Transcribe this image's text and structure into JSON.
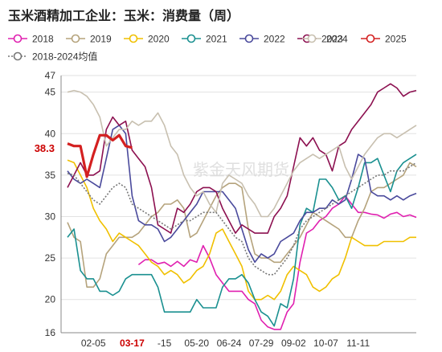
{
  "chart_data": {
    "type": "line",
    "title": "玉米酒精加工企业：玉米：消费量（周）",
    "watermark": "紫金天风期货",
    "ylim": [
      16,
      47
    ],
    "yticks": [
      16,
      20,
      25,
      30,
      35,
      40,
      45,
      47
    ],
    "xticks": [
      {
        "label": "02-05",
        "x": 5
      },
      {
        "label": "03-17",
        "x": 11,
        "highlight": true
      },
      {
        "label": "-15",
        "x": 16
      },
      {
        "label": "05-20",
        "x": 21
      },
      {
        "label": "06-24",
        "x": 26
      },
      {
        "label": "07-29",
        "x": 31
      },
      {
        "label": "09-02",
        "x": 36
      },
      {
        "label": "10-07",
        "x": 41
      },
      {
        "label": "11-11",
        "x": 46
      }
    ],
    "highlight_value": "38.3",
    "highlight_color": "#cc0000",
    "grid": "horizontal",
    "legend_position": "top",
    "series": [
      {
        "name": "2018",
        "color": "#e020b0",
        "marker": "circle",
        "dashed": false,
        "values": [
          null,
          null,
          null,
          null,
          null,
          null,
          null,
          null,
          null,
          null,
          null,
          null,
          24.2,
          24.8,
          24.8,
          24.3,
          24.5,
          24.0,
          24.6,
          24.0,
          24.8,
          24.5,
          26.5,
          25.0,
          23.0,
          22.0,
          21.0,
          21.0,
          21.0,
          20.0,
          19.5,
          17.5,
          16.7,
          16.4,
          16.4,
          18.5,
          19.5,
          24.5,
          28.0,
          28.5,
          29.5,
          30.0,
          31.0,
          31.5,
          32.5,
          31.5,
          30.5,
          30.5,
          30.3,
          30.2,
          29.8,
          30.3,
          30.5,
          30.0,
          30.2,
          29.9
        ]
      },
      {
        "name": "2019",
        "color": "#b5a37c",
        "marker": "circle",
        "dashed": false,
        "values": [
          null,
          29.3,
          27.5,
          27.0,
          21.5,
          21.5,
          22.5,
          25.5,
          26.5,
          27.5,
          27.5,
          27.5,
          28.0,
          29.0,
          30.0,
          30.5,
          31.5,
          31.5,
          32.0,
          31.0,
          27.5,
          28.0,
          29.5,
          31.0,
          32.5,
          33.5,
          34.0,
          34.0,
          33.5,
          28.5,
          25.5,
          25.0,
          25.0,
          24.5,
          24.5,
          25.5,
          26.5,
          27.5,
          29.0,
          30.5,
          30.0,
          29.5,
          29.0,
          28.5,
          27.5,
          27.5,
          29.5,
          31.0,
          33.0,
          33.5,
          33.5,
          34.0,
          34.5,
          35.0,
          36.5,
          36.0
        ]
      },
      {
        "name": "2020",
        "color": "#f0c000",
        "marker": "circle",
        "dashed": false,
        "values": [
          null,
          36.8,
          36.5,
          35.0,
          33.5,
          31.0,
          29.5,
          28.5,
          27.0,
          28.0,
          27.5,
          27.0,
          26.5,
          25.5,
          24.5,
          24.0,
          23.0,
          23.5,
          23.0,
          22.0,
          22.5,
          23.5,
          24.0,
          25.5,
          28.0,
          28.5,
          27.0,
          25.5,
          24.0,
          21.0,
          20.0,
          20.0,
          20.5,
          20.0,
          21.0,
          23.0,
          24.0,
          23.5,
          23.0,
          21.5,
          21.0,
          21.5,
          22.5,
          23.0,
          25.0,
          27.5,
          27.0,
          26.5,
          26.5,
          26.5,
          27.0,
          27.0,
          27.0,
          27.0,
          27.5,
          27.5
        ]
      },
      {
        "name": "2021",
        "color": "#1a9090",
        "marker": "circle",
        "dashed": false,
        "values": [
          null,
          27.5,
          28.5,
          23.5,
          22.5,
          22.5,
          21.0,
          21.0,
          20.5,
          21.0,
          22.5,
          23.0,
          23.0,
          23.0,
          23.0,
          21.5,
          18.5,
          18.5,
          18.5,
          18.5,
          18.5,
          20.0,
          19.0,
          19.0,
          19.0,
          21.5,
          22.5,
          22.5,
          23.0,
          22.0,
          20.0,
          18.5,
          18.0,
          16.8,
          19.5,
          19.0,
          22.5,
          29.0,
          31.0,
          30.5,
          34.5,
          34.5,
          33.5,
          32.0,
          32.5,
          31.0,
          33.5,
          36.5,
          36.5,
          37.0,
          35.0,
          33.0,
          35.5,
          36.5,
          37.0,
          37.5
        ]
      },
      {
        "name": "2022",
        "color": "#4a4a9c",
        "marker": "circle",
        "dashed": false,
        "values": [
          null,
          35.5,
          34.5,
          34.0,
          34.5,
          34.0,
          33.5,
          37.0,
          40.5,
          41.0,
          40.0,
          32.5,
          29.5,
          29.0,
          29.0,
          28.5,
          27.0,
          27.5,
          28.5,
          29.5,
          30.5,
          31.5,
          33.0,
          33.0,
          33.0,
          33.0,
          32.0,
          31.0,
          28.5,
          26.0,
          24.5,
          25.5,
          25.0,
          25.5,
          27.0,
          27.5,
          28.0,
          29.5,
          30.5,
          30.5,
          31.0,
          31.0,
          32.0,
          31.5,
          32.0,
          34.5,
          37.5,
          37.0,
          33.0,
          32.5,
          32.5,
          32.0,
          32.5,
          32.0,
          32.5,
          32.8
        ]
      },
      {
        "name": "2023",
        "color": "#8c1050",
        "marker": "circle",
        "dashed": false,
        "values": [
          null,
          33.5,
          35.0,
          36.5,
          35.0,
          35.0,
          35.5,
          40.5,
          42.0,
          41.0,
          41.5,
          38.0,
          37.0,
          36.0,
          33.5,
          29.0,
          28.5,
          28.0,
          31.0,
          30.5,
          31.5,
          33.0,
          33.5,
          33.5,
          33.0,
          31.0,
          29.5,
          28.0,
          29.0,
          28.5,
          28.0,
          28.0,
          28.0,
          30.0,
          31.0,
          32.5,
          36.0,
          39.5,
          38.5,
          39.5,
          38.0,
          37.5,
          35.5,
          38.5,
          39.0,
          40.5,
          41.5,
          42.5,
          43.5,
          45.0,
          45.5,
          46.0,
          45.5,
          44.5,
          45.0,
          45.2
        ]
      },
      {
        "name": "2024",
        "color": "#c8c0b0",
        "marker": "circle",
        "dashed": false,
        "values": [
          null,
          45.0,
          45.2,
          45.0,
          44.5,
          43.5,
          42.0,
          38.5,
          39.5,
          40.5,
          40.5,
          41.5,
          41.0,
          41.5,
          41.5,
          42.5,
          41.0,
          38.5,
          37.5,
          35.0,
          33.5,
          32.5,
          33.0,
          31.5,
          30.5,
          34.0,
          35.0,
          34.5,
          34.0,
          32.5,
          31.5,
          30.0,
          30.0,
          31.0,
          32.5,
          34.0,
          35.5,
          36.5,
          37.0,
          37.5,
          37.0,
          37.5,
          38.0,
          38.5,
          36.0,
          34.5,
          36.0,
          37.5,
          38.5,
          39.5,
          40.0,
          40.0,
          39.5,
          40.0,
          40.5,
          41.0
        ]
      },
      {
        "name": "2025",
        "color": "#d42020",
        "marker": "circle",
        "dashed": false,
        "bold": true,
        "values": [
          null,
          38.8,
          38.5,
          38.5,
          34.8,
          37.5,
          39.8,
          39.8,
          39.2,
          39.8,
          38.5,
          38.3
        ]
      },
      {
        "name": "2018-2024均值",
        "color": "#777777",
        "marker": "circle",
        "dashed": true,
        "values": [
          null,
          35.2,
          35.0,
          34.0,
          33.0,
          32.0,
          31.5,
          32.5,
          33.5,
          34.0,
          33.5,
          31.5,
          31.0,
          30.5,
          30.0,
          29.5,
          29.0,
          28.5,
          29.0,
          29.5,
          29.5,
          30.0,
          30.5,
          30.5,
          30.5,
          29.5,
          28.5,
          27.5,
          27.0,
          25.0,
          24.0,
          23.5,
          23.0,
          23.0,
          24.0,
          25.0,
          26.5,
          28.5,
          29.5,
          30.0,
          30.5,
          31.0,
          31.5,
          32.0,
          32.5,
          33.0,
          33.5,
          34.0,
          34.5,
          35.0,
          35.0,
          35.5,
          35.5,
          35.5,
          36.0,
          36.5
        ]
      }
    ]
  }
}
